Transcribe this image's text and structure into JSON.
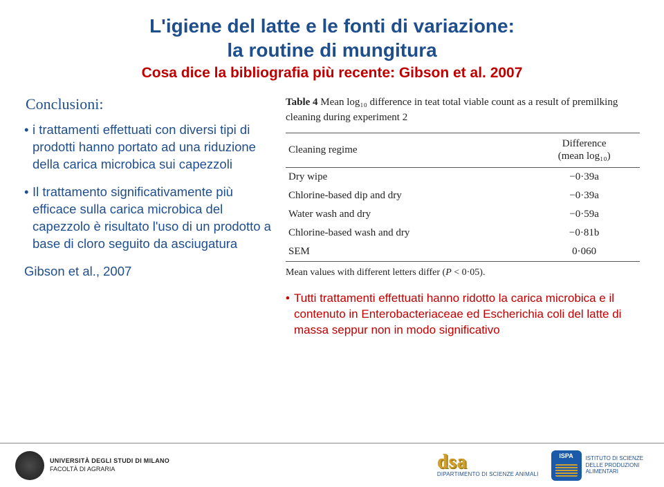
{
  "title_line1": "L'igiene del latte e le fonti di variazione:",
  "title_line2": "la routine di mungitura",
  "subtitle": "Cosa dice la bibliografia più recente: Gibson et al. 2007",
  "conclusioni_label": "Conclusioni:",
  "left_bullets": [
    "i trattamenti effettuati con diversi tipi di prodotti hanno portato ad una riduzione della carica microbica sui capezzoli",
    "Il trattamento significativamente più efficace sulla carica microbica del capezzolo è risultato l'uso di un prodotto a base di cloro seguito da asciugatura",
    "Gibson et al., 2007"
  ],
  "table": {
    "caption_prefix": "Table 4",
    "caption_rest": "   Mean log₁₀ difference in teat total viable count as a result of premilking cleaning during experiment 2",
    "col1_header": "Cleaning regime",
    "col2_header_line1": "Difference",
    "col2_header_line2": "(mean log₁₀)",
    "rows": [
      {
        "regime": "Dry wipe",
        "value": "−0·39a"
      },
      {
        "regime": "Chlorine-based dip and dry",
        "value": "−0·39a"
      },
      {
        "regime": "Water wash and dry",
        "value": "−0·59a"
      },
      {
        "regime": "Chlorine-based wash and dry",
        "value": "−0·81b"
      },
      {
        "regime": "SEM",
        "value": "0·060"
      }
    ],
    "note_prefix": "Mean values with different letters differ (",
    "note_italic": "P",
    "note_suffix": " < 0·05)."
  },
  "red_note": "Tutti  trattamenti effettuati hanno ridotto la carica microbica e il contenuto in Enterobacteriaceae ed Escherichia coli del latte di massa seppur non in modo significativo",
  "footer": {
    "unimi_line1": "UNIVERSITÀ DEGLI STUDI DI MILANO",
    "unimi_line2": "FACOLTÀ DI AGRARIA",
    "dsa_label": "dsa",
    "dsa_sub": "DIPARTIMENTO DI SCIENZE ANIMALI",
    "ispa_badge": "ISPA",
    "ispa_line1": "ISTITUTO DI SCIENZE",
    "ispa_line2": "DELLE PRODUZIONI",
    "ispa_line3": "ALIMENTARI"
  },
  "colors": {
    "title": "#1f4e8c",
    "subtitle": "#c00000",
    "body_blue": "#1f4e8c",
    "red_note": "#c00000",
    "table_text": "#222222",
    "dsa_gold": "#d0a030",
    "ispa_blue": "#1a5aa8"
  },
  "typography": {
    "title_size_pt": 21,
    "subtitle_size_pt": 16,
    "body_size_pt": 14,
    "table_size_pt": 11
  }
}
